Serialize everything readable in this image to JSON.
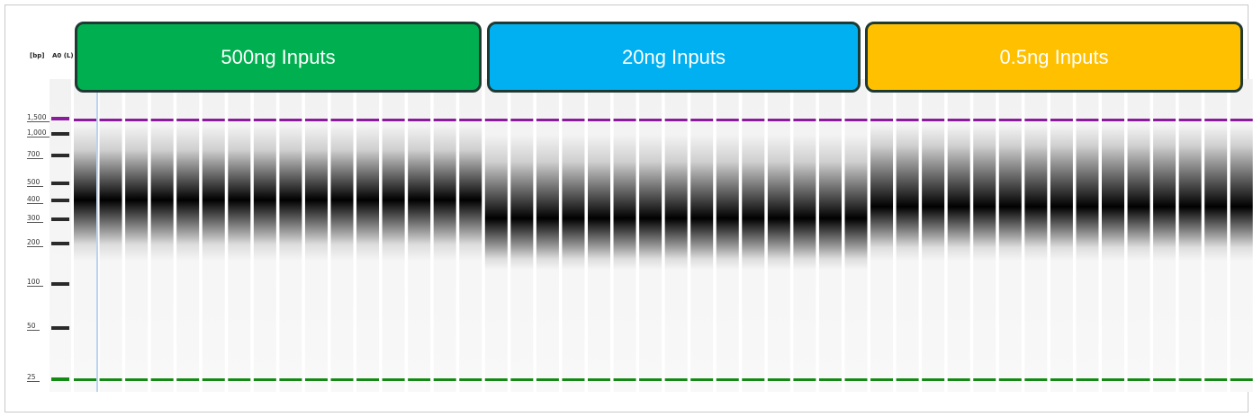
{
  "header": {
    "bp_label": "[bp]",
    "ladder_label": "A0 (L)"
  },
  "groups": [
    {
      "label": "500ng Inputs",
      "color": "#00b050"
    },
    {
      "label": "20ng Inputs",
      "color": "#00b0f0"
    },
    {
      "label": "0.5ng Inputs",
      "color": "#ffc000"
    }
  ],
  "ladder_sizes": [
    "1,500",
    "1,000",
    "700",
    "500",
    "400",
    "300",
    "200",
    "100",
    "50",
    "25"
  ],
  "markers": {
    "upper_color": "#8b1a9c",
    "lower_color": "#138a13"
  }
}
